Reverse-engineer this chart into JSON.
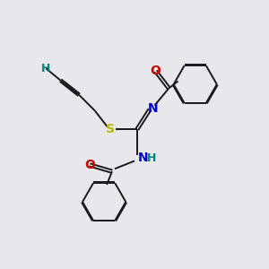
{
  "bg_color": "#e8e8ec",
  "bond_color": "#1a1a1a",
  "S_color": "#b8b800",
  "N_color": "#0000cc",
  "O_color": "#cc0000",
  "H_color": "#008080",
  "line_width": 1.4,
  "dbl_off": 0.06,
  "figsize": [
    3.0,
    3.0
  ],
  "dpi": 100,
  "xlim": [
    0,
    10
  ],
  "ylim": [
    0,
    10
  ]
}
